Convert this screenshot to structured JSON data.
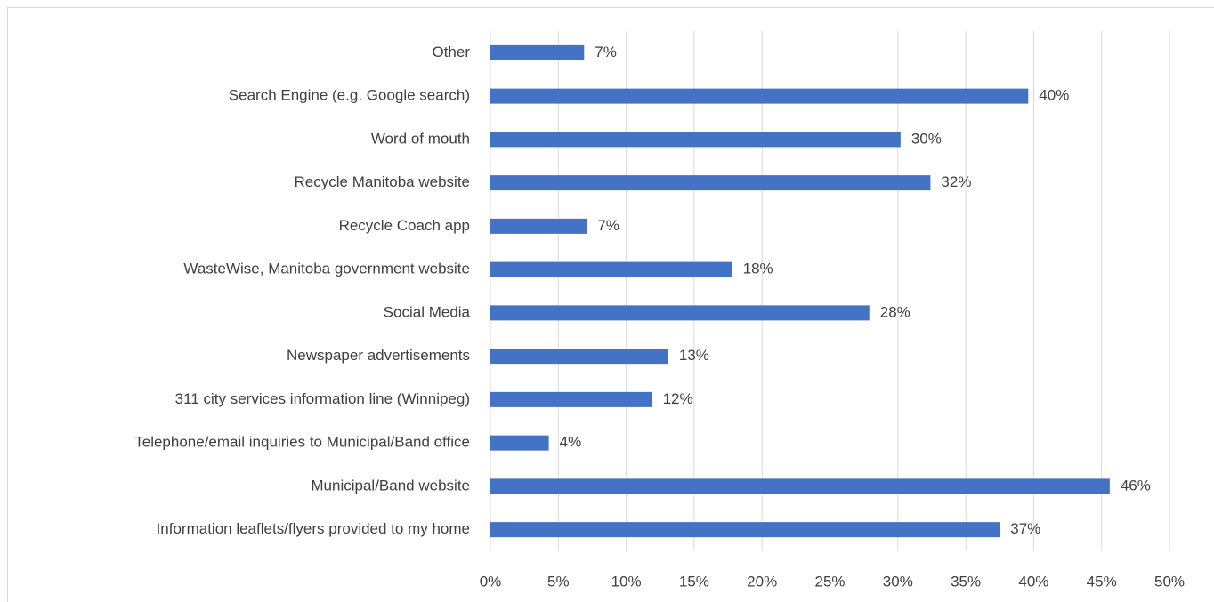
{
  "chart_data": {
    "type": "bar",
    "orientation": "horizontal",
    "categories": [
      "Other",
      "Search Engine (e.g. Google search)",
      "Word of mouth",
      "Recycle Manitoba website",
      "Recycle Coach app",
      "WasteWise, Manitoba government website",
      "Social Media",
      "Newspaper advertisements",
      "311 city services information line (Winnipeg)",
      "Telephone/email inquiries to Municipal/Band office",
      "Municipal/Band website",
      "Information leaflets/flyers provided to my home"
    ],
    "values": [
      6.9,
      39.6,
      30.2,
      32.4,
      7.1,
      17.8,
      27.9,
      13.1,
      11.9,
      4.3,
      45.6,
      37.5
    ],
    "value_labels": [
      "7%",
      "40%",
      "30%",
      "32%",
      "7%",
      "18%",
      "28%",
      "13%",
      "12%",
      "4%",
      "46%",
      "37%"
    ],
    "color": "#4472c4",
    "xlim": [
      0,
      50
    ],
    "xticks": [
      {
        "value": 0,
        "label": "0%"
      },
      {
        "value": 5,
        "label": "5%"
      },
      {
        "value": 10,
        "label": "10%"
      },
      {
        "value": 15,
        "label": "15%"
      },
      {
        "value": 20,
        "label": "20%"
      },
      {
        "value": 25,
        "label": "25%"
      },
      {
        "value": 30,
        "label": "30%"
      },
      {
        "value": 35,
        "label": "35%"
      },
      {
        "value": 40,
        "label": "40%"
      },
      {
        "value": 45,
        "label": "45%"
      },
      {
        "value": 50,
        "label": "50%"
      }
    ],
    "grid": true
  }
}
